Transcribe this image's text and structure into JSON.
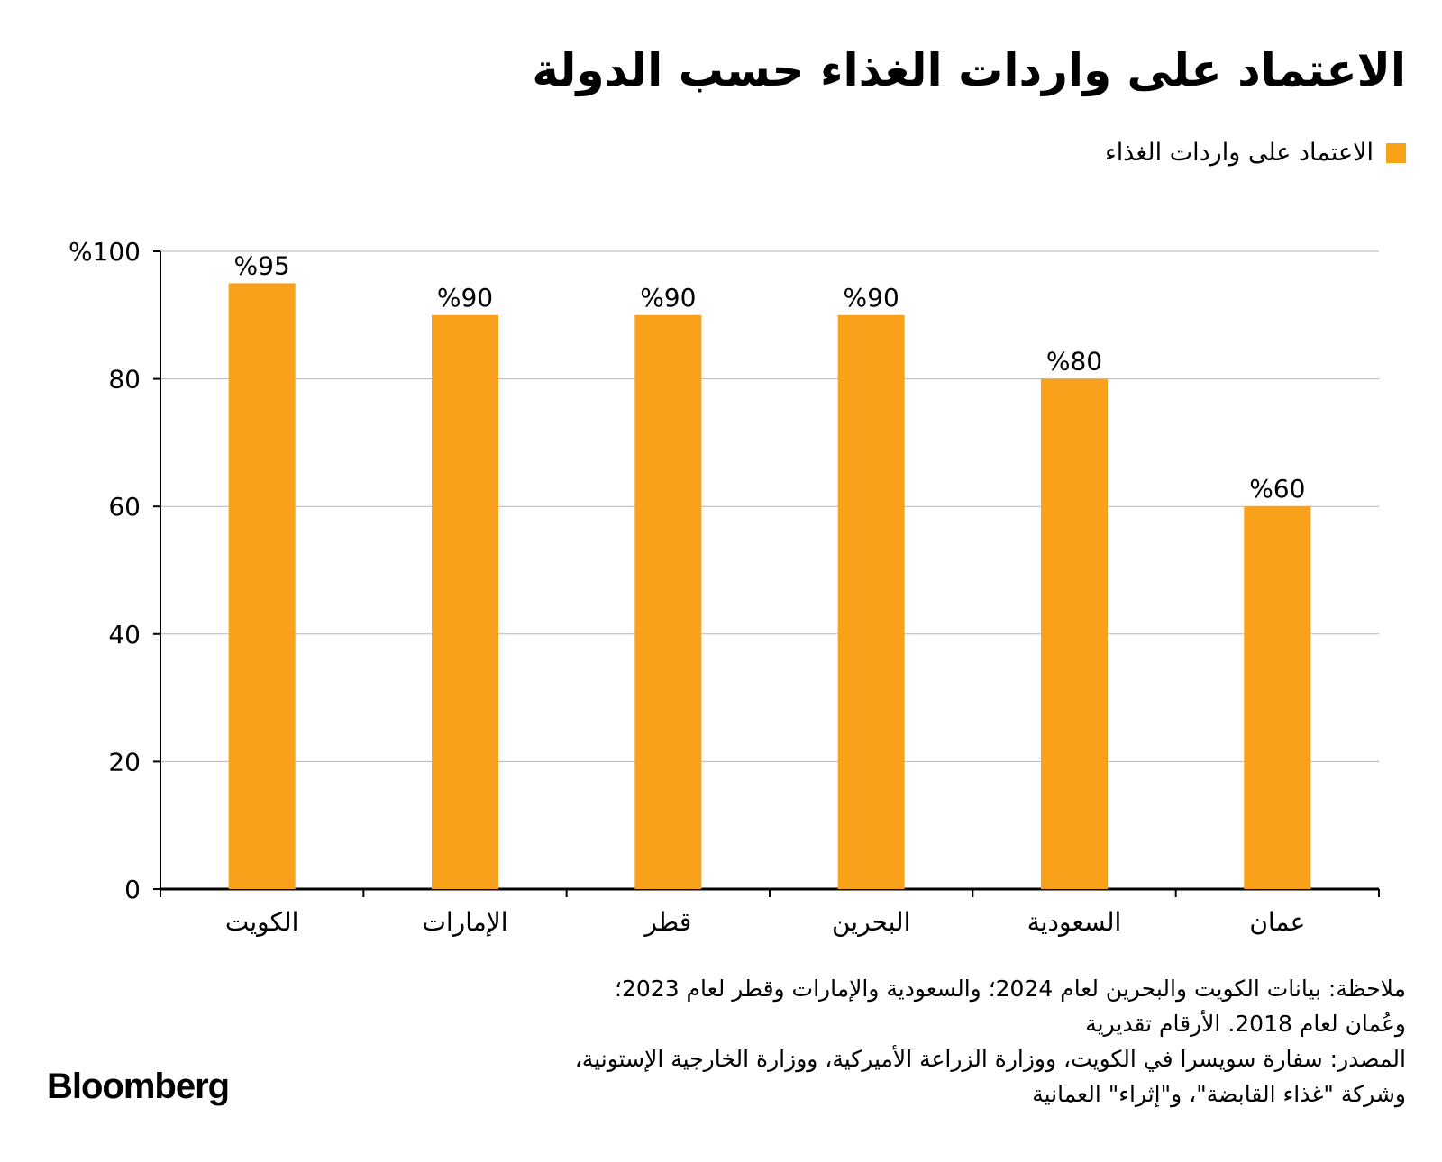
{
  "title": "الاعتماد على واردات الغذاء حسب الدولة",
  "legend": {
    "label": "الاعتماد على واردات الغذاء",
    "color": "#F9A11B"
  },
  "chart_data": {
    "type": "bar",
    "categories": [
      "الكويت",
      "الإمارات",
      "قطر",
      "البحرين",
      "السعودية",
      "عمان"
    ],
    "series": [
      {
        "name": "الاعتماد على واردات الغذاء",
        "values": [
          95,
          90,
          90,
          90,
          80,
          60
        ]
      }
    ],
    "value_labels": [
      "%95",
      "%90",
      "%90",
      "%90",
      "%80",
      "%60"
    ],
    "y_ticks": [
      0,
      20,
      40,
      60,
      80,
      100
    ],
    "y_tick_labels": [
      "0",
      "20",
      "40",
      "60",
      "80",
      "%100"
    ],
    "ylim": [
      0,
      100
    ],
    "grid": true,
    "bar_color": "#F9A11B"
  },
  "notes": {
    "note_line1": "ملاحظة: بيانات الكويت والبحرين لعام 2024؛ والسعودية والإمارات وقطر لعام 2023؛",
    "note_line2": "وعُمان لعام 2018. الأرقام تقديرية",
    "source_line1": "المصدر: سفارة سويسرا في الكويت، ووزارة الزراعة الأميركية، ووزارة الخارجية الإستونية،",
    "source_line2": "وشركة \"غذاء القابضة\"، و\"إثراء\" العمانية"
  },
  "brand": "Bloomberg"
}
